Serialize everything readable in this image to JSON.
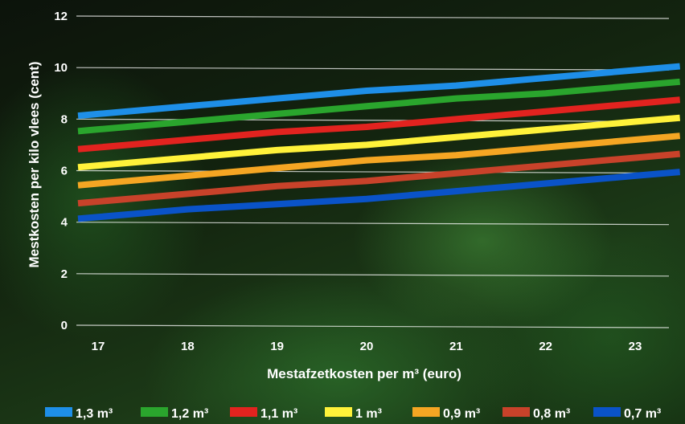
{
  "chart_data": {
    "type": "line",
    "xlabel": "Mestafzetkosten per m³ (euro)",
    "ylabel": "Mestkosten per kilo vlees (cent)",
    "x": [
      17,
      18,
      19,
      20,
      21,
      22,
      23
    ],
    "xlim": [
      17,
      23.5
    ],
    "ylim": [
      0,
      12
    ],
    "yticks": [
      0,
      2,
      4,
      6,
      8,
      10,
      12
    ],
    "grid": true,
    "legend_position": "bottom",
    "series": [
      {
        "name": "1,3 m³",
        "color": "#1e8fe8",
        "values": [
          8.2,
          8.5,
          8.8,
          9.1,
          9.3,
          9.6,
          9.9
        ]
      },
      {
        "name": "1,2 m³",
        "color": "#2aa52d",
        "values": [
          7.6,
          7.9,
          8.2,
          8.5,
          8.8,
          9.0,
          9.3
        ]
      },
      {
        "name": "1,1 m³",
        "color": "#e2231f",
        "values": [
          6.9,
          7.2,
          7.5,
          7.7,
          8.0,
          8.3,
          8.6
        ]
      },
      {
        "name": "1 m³",
        "color": "#fff23a",
        "values": [
          6.2,
          6.5,
          6.8,
          7.0,
          7.3,
          7.6,
          7.9
        ]
      },
      {
        "name": "0,9 m³",
        "color": "#f5a623",
        "values": [
          5.5,
          5.8,
          6.1,
          6.4,
          6.6,
          6.9,
          7.2
        ]
      },
      {
        "name": "0,8 m³",
        "color": "#c8422a",
        "values": [
          4.8,
          5.1,
          5.4,
          5.6,
          5.9,
          6.2,
          6.5
        ]
      },
      {
        "name": "0,7 m³",
        "color": "#0a53c8",
        "values": [
          4.2,
          4.5,
          4.7,
          4.9,
          5.2,
          5.5,
          5.8
        ]
      }
    ]
  }
}
